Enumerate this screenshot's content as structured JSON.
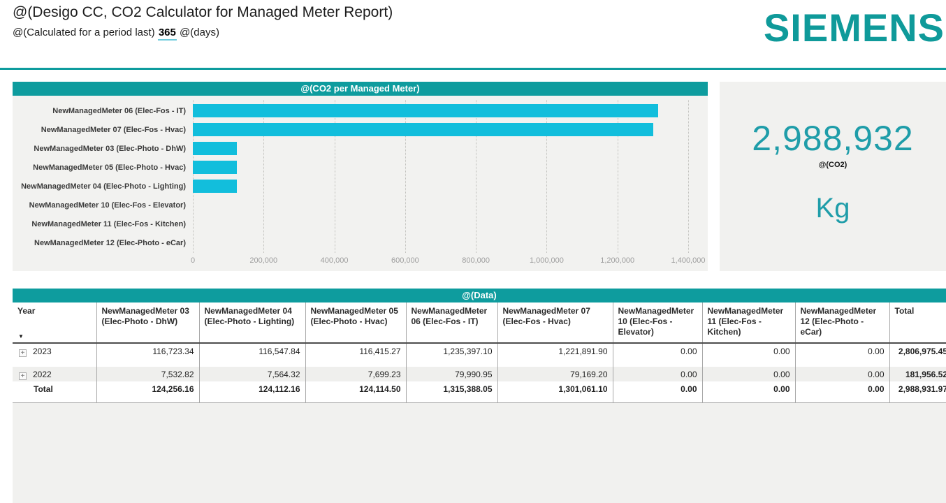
{
  "page": {
    "title": "@(Desigo CC, CO2 Calculator for Managed Meter Report)",
    "subtitle_prefix": "@(Calculated for a period last)",
    "period_days": "365",
    "subtitle_suffix": "@(days)",
    "brand": "SIEMENS"
  },
  "colors": {
    "accent_teal": "#0E9C9E",
    "bar_cyan": "#12BEDC",
    "value_teal": "#1F9DA9",
    "panel_gray": "#F1F1EF"
  },
  "summary": {
    "value": "2,988,932",
    "label": "@(CO2)",
    "unit": "Kg"
  },
  "chart_data": [
    {
      "type": "bar",
      "orientation": "horizontal",
      "title": "@(CO2 per Managed Meter)",
      "categories": [
        "NewManagedMeter 06 (Elec-Fos - IT)",
        "NewManagedMeter 07 (Elec-Fos - Hvac)",
        "NewManagedMeter 03 (Elec-Photo - DhW)",
        "NewManagedMeter 05 (Elec-Photo - Hvac)",
        "NewManagedMeter 04 (Elec-Photo - Lighting)",
        "NewManagedMeter 10 (Elec-Fos - Elevator)",
        "NewManagedMeter 11 (Elec-Fos - Kitchen)",
        "NewManagedMeter 12 (Elec-Photo - eCar)"
      ],
      "values": [
        1315388.05,
        1301061.1,
        124256.16,
        124114.5,
        124112.16,
        0,
        0,
        0
      ],
      "xlim": [
        0,
        1400000
      ],
      "xticks": [
        "0",
        "200,000",
        "400,000",
        "600,000",
        "800,000",
        "1,000,000",
        "1,200,000",
        "1,400,000"
      ],
      "grid": true,
      "xlabel": "",
      "ylabel": ""
    },
    {
      "type": "table",
      "title": "@(Data)",
      "columns": [
        "Year",
        "NewManagedMeter 03 (Elec-Photo - DhW)",
        "NewManagedMeter 04 (Elec-Photo - Lighting)",
        "NewManagedMeter 05 (Elec-Photo - Hvac)",
        "NewManagedMeter 06 (Elec-Fos - IT)",
        "NewManagedMeter 07 (Elec-Fos - Hvac)",
        "NewManagedMeter 10 (Elec-Fos - Elevator)",
        "NewManagedMeter 11 (Elec-Fos - Kitchen)",
        "NewManagedMeter 12 (Elec-Photo - eCar)",
        "Total"
      ],
      "rows": [
        {
          "label": "2023",
          "expandable": true,
          "cells": [
            "116,723.34",
            "116,547.84",
            "116,415.27",
            "1,235,397.10",
            "1,221,891.90",
            "0.00",
            "0.00",
            "0.00",
            "2,806,975.45"
          ]
        },
        {
          "label": "2022",
          "expandable": true,
          "cells": [
            "7,532.82",
            "7,564.32",
            "7,699.23",
            "79,990.95",
            "79,169.20",
            "0.00",
            "0.00",
            "0.00",
            "181,956.52"
          ]
        },
        {
          "label": "Total",
          "expandable": false,
          "cells": [
            "124,256.16",
            "124,112.16",
            "124,114.50",
            "1,315,388.05",
            "1,301,061.10",
            "0.00",
            "0.00",
            "0.00",
            "2,988,931.97"
          ]
        }
      ]
    }
  ],
  "icons": {
    "expand": "+",
    "sort_desc": "▼"
  }
}
